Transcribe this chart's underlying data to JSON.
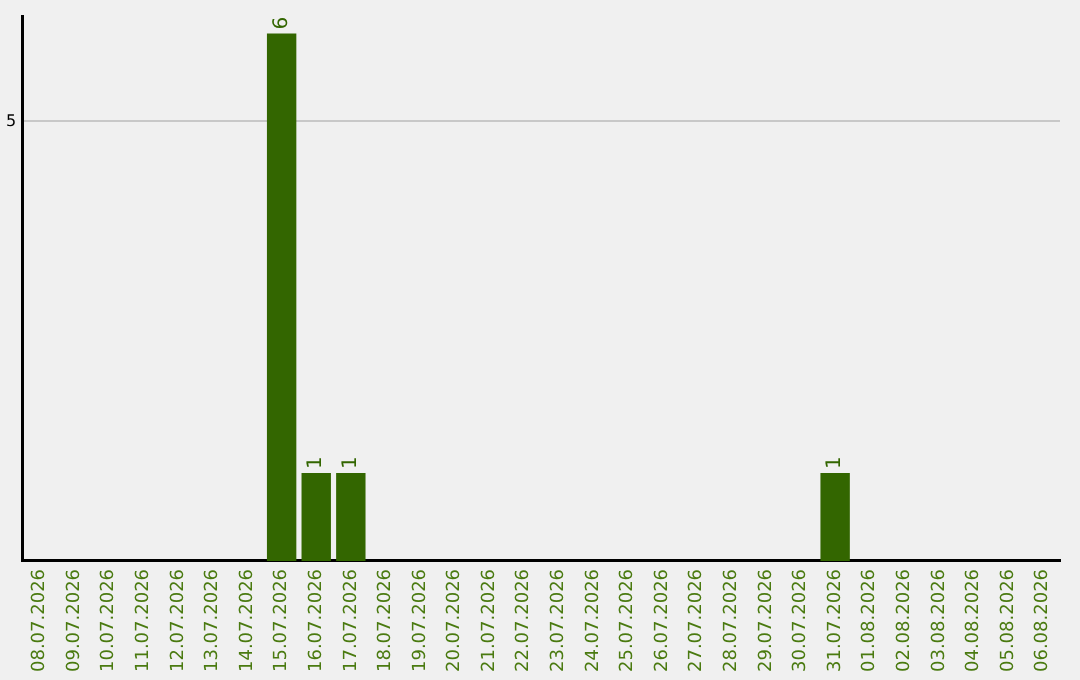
{
  "chart_data": {
    "type": "bar",
    "categories": [
      "08.07.2026",
      "09.07.2026",
      "10.07.2026",
      "11.07.2026",
      "12.07.2026",
      "13.07.2026",
      "14.07.2026",
      "15.07.2026",
      "16.07.2026",
      "17.07.2026",
      "18.07.2026",
      "19.07.2026",
      "20.07.2026",
      "21.07.2026",
      "22.07.2026",
      "23.07.2026",
      "24.07.2026",
      "25.07.2026",
      "26.07.2026",
      "27.07.2026",
      "28.07.2026",
      "29.07.2026",
      "30.07.2026",
      "31.07.2026",
      "01.08.2026",
      "02.08.2026",
      "03.08.2026",
      "04.08.2026",
      "05.08.2026",
      "06.08.2026"
    ],
    "values": [
      0,
      0,
      0,
      0,
      0,
      0,
      0,
      6,
      1,
      1,
      0,
      0,
      0,
      0,
      0,
      0,
      0,
      0,
      0,
      0,
      0,
      0,
      0,
      1,
      0,
      0,
      0,
      0,
      0,
      0
    ],
    "color": "#336600",
    "value_labels": [
      null,
      null,
      null,
      null,
      null,
      null,
      null,
      "6",
      "1",
      "1",
      null,
      null,
      null,
      null,
      null,
      null,
      null,
      null,
      null,
      null,
      null,
      null,
      null,
      "1",
      null,
      null,
      null,
      null,
      null,
      null
    ],
    "ylim": [
      0,
      6.2
    ],
    "yticks": [
      5
    ],
    "grid": "y",
    "legend": false
  }
}
